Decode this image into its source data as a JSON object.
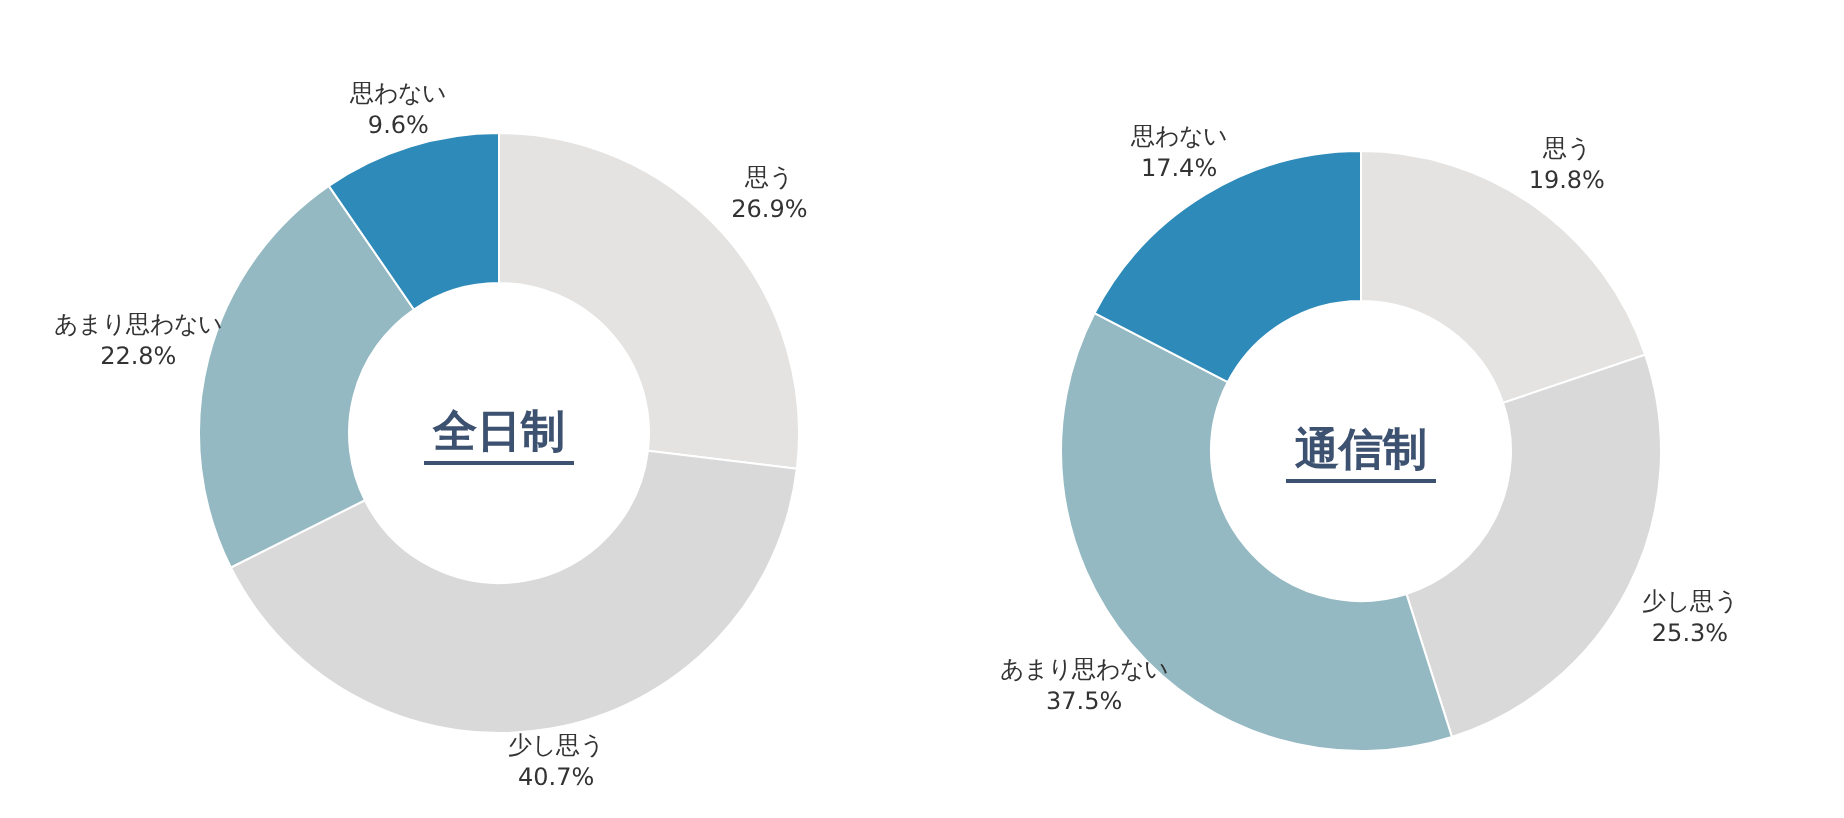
{
  "chart_data": [
    {
      "type": "donut",
      "title": "全日制",
      "categories": [
        "思う",
        "少し思う",
        "あまり思わない",
        "思わない"
      ],
      "values": [
        26.9,
        40.7,
        22.8,
        9.6
      ],
      "colors": [
        "#e4e3e2",
        "#d9d9d9",
        "#94b9c2",
        "#2e8ab8"
      ],
      "value_labels": [
        "26.9%",
        "40.7%",
        "22.8%",
        "9.6%"
      ]
    },
    {
      "type": "donut",
      "title": "通信制",
      "categories": [
        "思う",
        "少し思う",
        "あまり思わない",
        "思わない"
      ],
      "values": [
        19.8,
        25.3,
        37.5,
        17.4
      ],
      "colors": [
        "#e4e3e2",
        "#d9d9d9",
        "#94b9c2",
        "#2e8ab8"
      ],
      "value_labels": [
        "19.8%",
        "25.3%",
        "37.5%",
        "17.4%"
      ]
    }
  ]
}
